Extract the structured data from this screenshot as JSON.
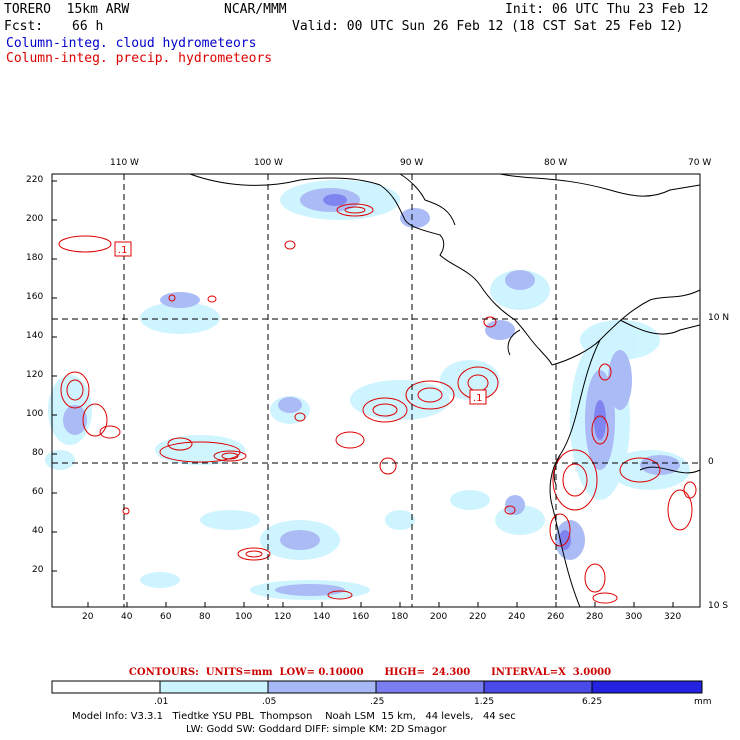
{
  "header": {
    "model": "TORERO  15km ARW",
    "org": "NCAR/MMM",
    "init": "Init: 06 UTC Thu 23 Feb 12",
    "fcst_label": "Fcst:",
    "fcst_value": "66 h",
    "valid": "Valid: 00 UTC Sun 26 Feb 12 (18 CST Sat 25 Feb 12)",
    "field1": "Column-integ. cloud hydrometeors",
    "field2": "Column-integ. precip. hydrometeors"
  },
  "axes": {
    "top_labels": [
      "110 W",
      "100 W",
      "90 W",
      "80 W",
      "70 W"
    ],
    "right_labels": [
      "10 N",
      "0",
      "10 S"
    ],
    "y_ticks": [
      "220",
      "200",
      "180",
      "160",
      "140",
      "120",
      "100",
      "80",
      "60",
      "40",
      "20"
    ],
    "x_ticks": [
      "20",
      "40",
      "60",
      "80",
      "100",
      "120",
      "140",
      "160",
      "180",
      "200",
      "220",
      "240",
      "260",
      "280",
      "300",
      "320"
    ]
  },
  "boxed_labels": [
    ".1",
    ".1"
  ],
  "contour_info": {
    "label": "CONTOURS:",
    "units": "UNITS=mm",
    "low": "LOW= 0.10000",
    "high": "HIGH=  24.300",
    "interval": "INTERVAL=X  3.0000"
  },
  "legend": {
    "thresholds": [
      ".01",
      ".05",
      ".25",
      "1.25",
      "6.25"
    ],
    "unit": "mm",
    "colors": [
      "#ffffff",
      "#ccf4ff",
      "#a6b8f5",
      "#7a7ef0",
      "#4a4ae8",
      "#2222e0"
    ]
  },
  "model_info": {
    "line1": "Model Info: V3.3.1   Tiedtke YSU PBL  Thompson    Noah LSM  15 km,   44 levels,   44 sec",
    "line2": "LW: Godd SW: Goddard DIFF: simple KM: 2D Smagor"
  }
}
